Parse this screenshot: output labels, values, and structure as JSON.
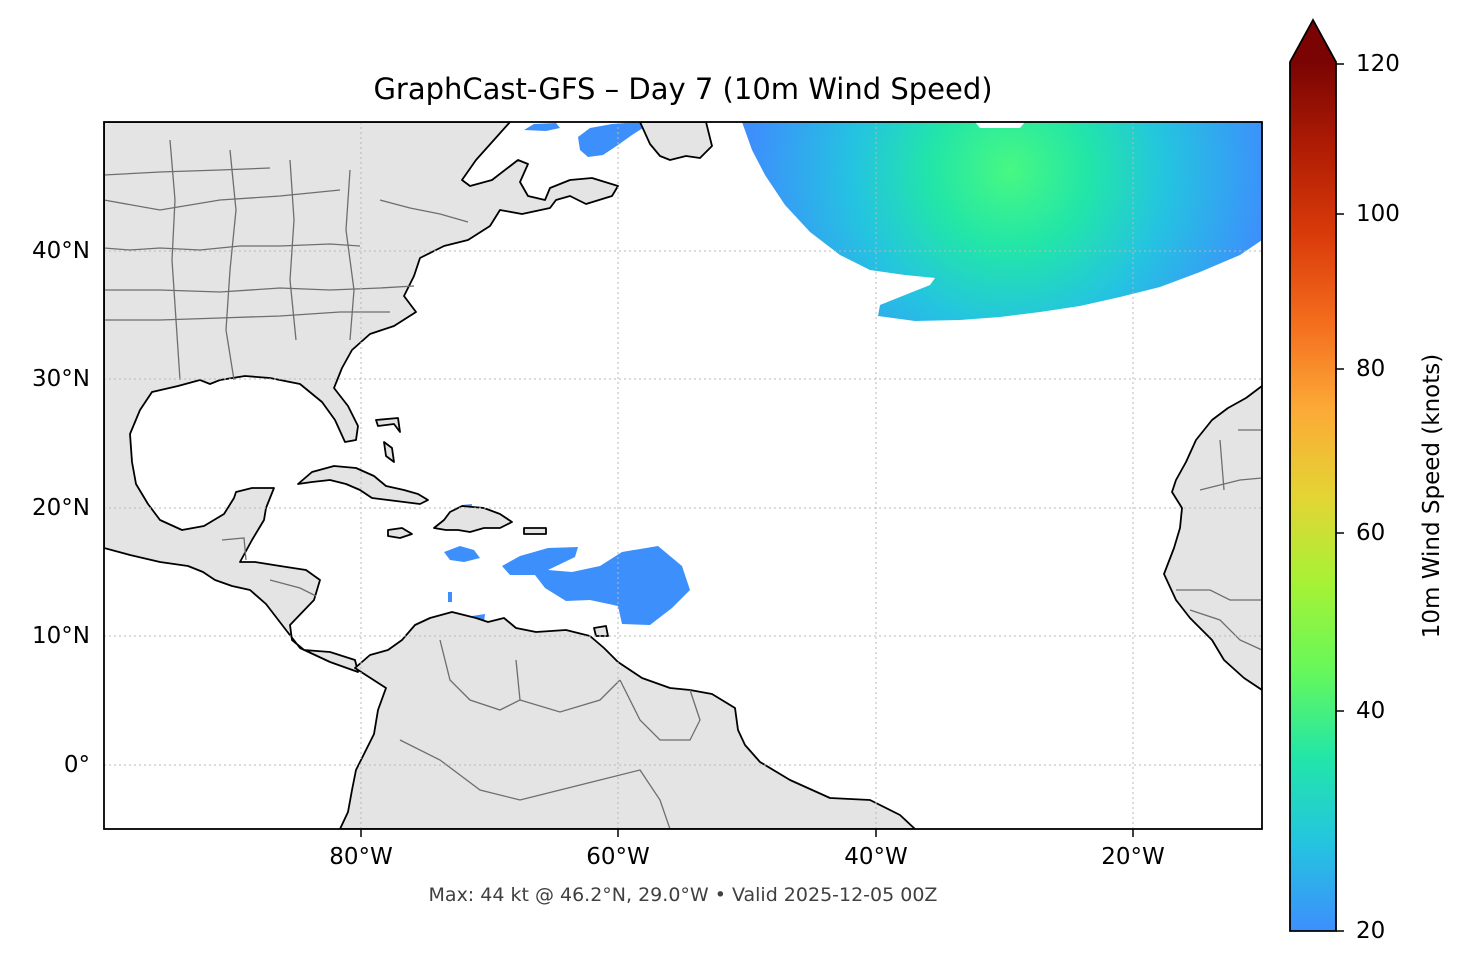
{
  "map": {
    "title": "GraphCast-GFS – Day 7 (10m Wind Speed)",
    "footer": "Max: 44 kt @ 46.2°N, 29.0°W • Valid 2025-12-05 00Z",
    "longitude_labels": [
      "80°W",
      "60°W",
      "40°W",
      "20°W"
    ],
    "latitude_labels": [
      "40°N",
      "30°N",
      "20°N",
      "10°N",
      "0°"
    ],
    "extent": {
      "lon_min": -100,
      "lon_max": -10,
      "lat_min": -5,
      "lat_max": 50
    },
    "gridlines": true,
    "land_color": "#e4e4e4",
    "coast_color": "#000000",
    "border_color": "#6e6e6e",
    "wind_low_color": "#3d8ffc",
    "wind_peak_color": "#48f882",
    "max_wind": {
      "value_kt": 44,
      "lat": 46.2,
      "lon": -29.0
    }
  },
  "colorbar": {
    "label": "10m Wind Speed (knots)",
    "ticks": [
      "120",
      "100",
      "80",
      "60",
      "40",
      "20"
    ],
    "min": 20,
    "max": 120,
    "extend": "max",
    "colormap": "turbo",
    "colors": [
      "#3d8ffc",
      "#24c4e0",
      "#22e6a8",
      "#66f85a",
      "#a6f235",
      "#e4d433",
      "#fcaa37",
      "#f46d1d",
      "#da3b0a",
      "#b01d04",
      "#7a0403"
    ]
  }
}
